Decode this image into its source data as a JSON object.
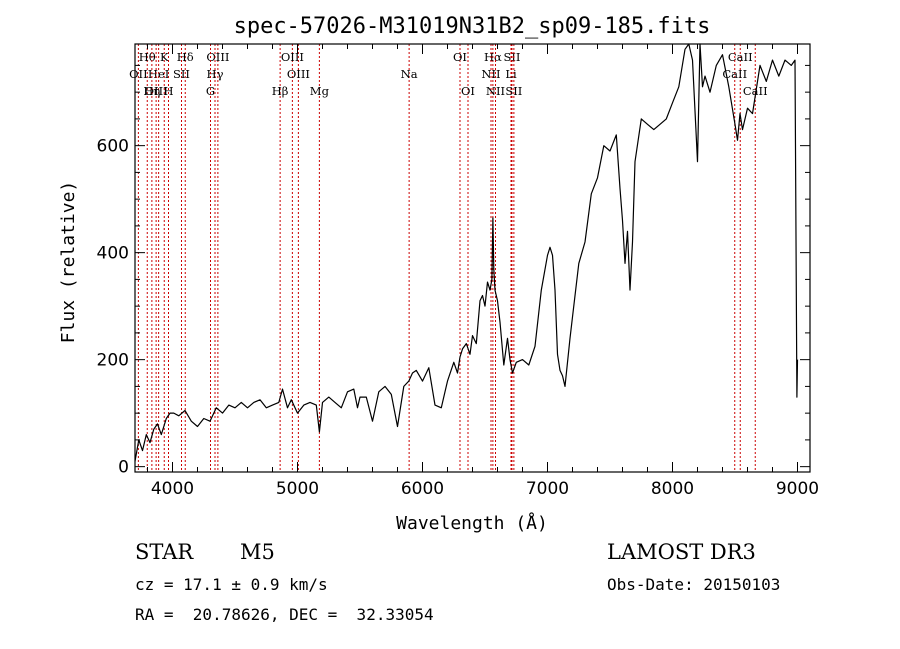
{
  "chart_data": {
    "type": "line",
    "title": "spec-57026-M31019N31B2_sp09-185.fits",
    "xlabel": "Wavelength (Å)",
    "ylabel": "Flux (relative)",
    "xlim": [
      3700,
      9100
    ],
    "ylim": [
      -10,
      790
    ],
    "xticks": [
      4000,
      5000,
      6000,
      7000,
      8000,
      9000
    ],
    "yticks": [
      0,
      200,
      400,
      600
    ],
    "series": [
      {
        "name": "flux",
        "x": [
          3700,
          3730,
          3760,
          3790,
          3820,
          3850,
          3880,
          3910,
          3950,
          3980,
          4010,
          4050,
          4100,
          4150,
          4200,
          4250,
          4300,
          4350,
          4400,
          4450,
          4500,
          4550,
          4600,
          4650,
          4700,
          4750,
          4800,
          4850,
          4880,
          4920,
          4950,
          5000,
          5050,
          5100,
          5150,
          5175,
          5200,
          5250,
          5300,
          5350,
          5400,
          5450,
          5480,
          5500,
          5550,
          5600,
          5650,
          5700,
          5750,
          5800,
          5850,
          5890,
          5920,
          5950,
          6000,
          6050,
          6100,
          6150,
          6180,
          6200,
          6250,
          6280,
          6300,
          6320,
          6350,
          6380,
          6400,
          6430,
          6460,
          6480,
          6500,
          6520,
          6540,
          6555,
          6563,
          6570,
          6580,
          6600,
          6620,
          6650,
          6680,
          6700,
          6720,
          6750,
          6800,
          6850,
          6900,
          6950,
          7000,
          7020,
          7040,
          7060,
          7080,
          7100,
          7120,
          7140,
          7160,
          7180,
          7200,
          7250,
          7300,
          7350,
          7400,
          7450,
          7500,
          7550,
          7580,
          7600,
          7620,
          7640,
          7660,
          7680,
          7700,
          7750,
          7800,
          7850,
          7900,
          7950,
          8000,
          8050,
          8100,
          8130,
          8160,
          8200,
          8220,
          8240,
          8260,
          8300,
          8350,
          8400,
          8450,
          8500,
          8520,
          8540,
          8560,
          8600,
          8640,
          8660,
          8700,
          8750,
          8800,
          8850,
          8900,
          8950,
          8980,
          8995,
          9000
        ],
        "y": [
          10,
          50,
          30,
          60,
          45,
          70,
          80,
          60,
          90,
          100,
          100,
          95,
          105,
          85,
          75,
          90,
          85,
          110,
          100,
          115,
          110,
          120,
          110,
          120,
          125,
          110,
          115,
          120,
          145,
          110,
          125,
          100,
          115,
          120,
          115,
          65,
          120,
          130,
          120,
          110,
          140,
          145,
          110,
          130,
          130,
          85,
          140,
          150,
          135,
          75,
          150,
          160,
          175,
          180,
          160,
          185,
          115,
          110,
          140,
          160,
          195,
          175,
          205,
          220,
          230,
          210,
          245,
          230,
          310,
          320,
          300,
          345,
          330,
          350,
          465,
          370,
          330,
          310,
          270,
          190,
          240,
          200,
          175,
          195,
          200,
          190,
          225,
          330,
          395,
          410,
          395,
          330,
          210,
          180,
          170,
          150,
          195,
          240,
          280,
          380,
          420,
          510,
          540,
          600,
          590,
          620,
          520,
          460,
          380,
          440,
          330,
          420,
          570,
          650,
          640,
          630,
          640,
          650,
          680,
          710,
          780,
          790,
          760,
          570,
          790,
          710,
          730,
          700,
          750,
          770,
          710,
          640,
          610,
          660,
          630,
          670,
          660,
          690,
          750,
          720,
          760,
          730,
          760,
          750,
          760,
          130,
          200
        ]
      }
    ],
    "spectral_lines": [
      {
        "label": "Hθ",
        "wl": 3798,
        "row": 1
      },
      {
        "label": "K",
        "wl": 3934,
        "row": 1
      },
      {
        "label": "Hδ",
        "wl": 4102,
        "row": 1
      },
      {
        "label": "OIII",
        "wl": 4363,
        "row": 1
      },
      {
        "label": "OIII",
        "wl": 4959,
        "row": 1
      },
      {
        "label": "OI",
        "wl": 6300,
        "row": 1
      },
      {
        "label": "Hα",
        "wl": 6563,
        "row": 1
      },
      {
        "label": "SII",
        "wl": 6716,
        "row": 1
      },
      {
        "label": "CaII",
        "wl": 8542,
        "row": 1
      },
      {
        "label": "OII",
        "wl": 3727,
        "row": 2
      },
      {
        "label": "HeI",
        "wl": 3889,
        "row": 2
      },
      {
        "label": "SII",
        "wl": 4072,
        "row": 2
      },
      {
        "label": "Hγ",
        "wl": 4340,
        "row": 2
      },
      {
        "label": "OIII",
        "wl": 5007,
        "row": 2
      },
      {
        "label": "Na",
        "wl": 5893,
        "row": 2
      },
      {
        "label": "NII",
        "wl": 6548,
        "row": 2
      },
      {
        "label": "Li",
        "wl": 6708,
        "row": 2
      },
      {
        "label": "CaII",
        "wl": 8498,
        "row": 2
      },
      {
        "label": "OIII",
        "wl": 3869,
        "row": 3
      },
      {
        "label": "Hη",
        "wl": 3835,
        "row": 3
      },
      {
        "label": "H",
        "wl": 3968,
        "row": 3
      },
      {
        "label": "G",
        "wl": 4304,
        "row": 3
      },
      {
        "label": "Hβ",
        "wl": 4861,
        "row": 3
      },
      {
        "label": "Mg",
        "wl": 5175,
        "row": 3
      },
      {
        "label": "OI",
        "wl": 6364,
        "row": 3
      },
      {
        "label": "NII",
        "wl": 6584,
        "row": 3
      },
      {
        "label": "SII",
        "wl": 6731,
        "row": 3
      },
      {
        "label": "CaII",
        "wl": 8662,
        "row": 3
      }
    ],
    "line_color": "#cc0000",
    "grid": false
  },
  "info": {
    "class": "STAR",
    "subclass": "M5",
    "survey": "LAMOST DR3",
    "cz": "cz = 17.1 ± 0.9 km/s",
    "obs_date": "Obs-Date: 20150103",
    "coords": "RA =  20.78626, DEC =  32.33054"
  }
}
